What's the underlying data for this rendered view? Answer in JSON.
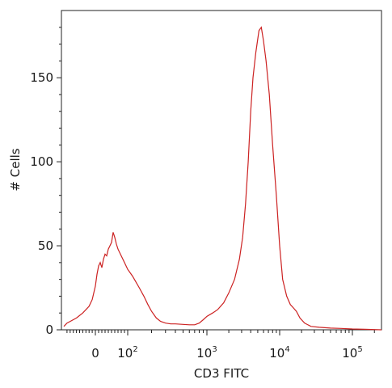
{
  "chart_data": {
    "type": "line",
    "title": "",
    "xlabel": "CD3 FITC",
    "ylabel": "# Cells",
    "x_scale": "biexponential",
    "xlim": [
      -100,
      250000
    ],
    "ylim": [
      0,
      190
    ],
    "grid": false,
    "legend": "none",
    "line_color": "#cc2222",
    "y_ticks": [
      {
        "value": 0,
        "label": "0"
      },
      {
        "value": 50,
        "label": "50"
      },
      {
        "value": 100,
        "label": "100"
      },
      {
        "value": 150,
        "label": "150"
      }
    ],
    "x_ticks": [
      {
        "value": 0,
        "base": "0",
        "exp": ""
      },
      {
        "value": 100,
        "base": "10",
        "exp": "2"
      },
      {
        "value": 1000,
        "base": "10",
        "exp": "3"
      },
      {
        "value": 10000,
        "base": "10",
        "exp": "4"
      },
      {
        "value": 100000,
        "base": "10",
        "exp": "5"
      }
    ],
    "series": [
      {
        "points": [
          [
            -100,
            2
          ],
          [
            -90,
            4
          ],
          [
            -80,
            5
          ],
          [
            -60,
            7
          ],
          [
            -40,
            10
          ],
          [
            -20,
            14
          ],
          [
            -10,
            18
          ],
          [
            0,
            26
          ],
          [
            5,
            33
          ],
          [
            10,
            38
          ],
          [
            15,
            40
          ],
          [
            20,
            37
          ],
          [
            25,
            42
          ],
          [
            30,
            45
          ],
          [
            35,
            44
          ],
          [
            40,
            48
          ],
          [
            45,
            50
          ],
          [
            50,
            52
          ],
          [
            55,
            58
          ],
          [
            60,
            55
          ],
          [
            65,
            51
          ],
          [
            70,
            48
          ],
          [
            80,
            44
          ],
          [
            90,
            40
          ],
          [
            100,
            36
          ],
          [
            115,
            32
          ],
          [
            125,
            29
          ],
          [
            140,
            25
          ],
          [
            160,
            20
          ],
          [
            180,
            15
          ],
          [
            200,
            11
          ],
          [
            230,
            7
          ],
          [
            260,
            5
          ],
          [
            300,
            4
          ],
          [
            350,
            3.5
          ],
          [
            400,
            3.5
          ],
          [
            500,
            3.2
          ],
          [
            600,
            3
          ],
          [
            700,
            3
          ],
          [
            800,
            4
          ],
          [
            900,
            6
          ],
          [
            1000,
            8
          ],
          [
            1200,
            10
          ],
          [
            1400,
            12
          ],
          [
            1700,
            16
          ],
          [
            2000,
            22
          ],
          [
            2400,
            30
          ],
          [
            2800,
            42
          ],
          [
            3100,
            55
          ],
          [
            3400,
            75
          ],
          [
            3700,
            100
          ],
          [
            4000,
            130
          ],
          [
            4300,
            150
          ],
          [
            4700,
            165
          ],
          [
            5200,
            178
          ],
          [
            5600,
            180
          ],
          [
            6000,
            172
          ],
          [
            6500,
            160
          ],
          [
            7200,
            140
          ],
          [
            8000,
            110
          ],
          [
            9000,
            80
          ],
          [
            10000,
            50
          ],
          [
            11000,
            30
          ],
          [
            12500,
            20
          ],
          [
            14000,
            15
          ],
          [
            15500,
            13
          ],
          [
            17000,
            11
          ],
          [
            19000,
            7
          ],
          [
            22000,
            4
          ],
          [
            27000,
            2
          ],
          [
            35000,
            1.5
          ],
          [
            50000,
            1
          ],
          [
            70000,
            0.8
          ],
          [
            100000,
            0.5
          ],
          [
            150000,
            0.3
          ],
          [
            250000,
            0
          ]
        ]
      }
    ]
  }
}
